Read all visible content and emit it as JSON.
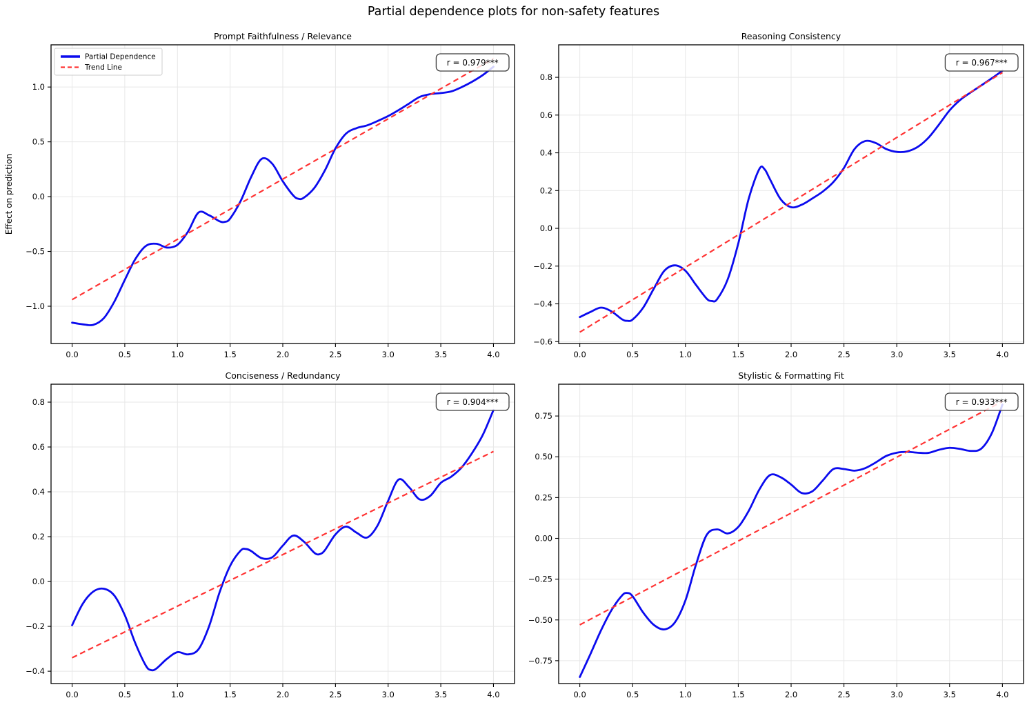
{
  "figure": {
    "title": "Partial dependence plots for non-safety features",
    "background": "#ffffff",
    "colors": {
      "curve": "#0b0bee",
      "trend": "#ff3333",
      "grid": "#e7e7e7",
      "spine": "#000000",
      "text": "#000000",
      "annotation_border": "#3a3a3a",
      "annotation_bg": "rgba(255,255,255,0.82)",
      "legend_border": "#cccccc",
      "legend_bg": "rgba(255,255,255,0.9)"
    },
    "legend": {
      "items": [
        {
          "label": "Partial Dependence",
          "style": "solid",
          "color": "#0b0bee"
        },
        {
          "label": "Trend Line",
          "style": "dashed",
          "color": "#ff3333"
        }
      ]
    }
  },
  "chart_data": [
    {
      "type": "line",
      "title": "Prompt Faithfulness / Relevance",
      "annotation": "r = 0.979***",
      "ylabel": "Effect on prediction",
      "has_legend": true,
      "xlim": [
        -0.2,
        4.2
      ],
      "ylim": [
        -1.34,
        1.385
      ],
      "x_ticks": [
        0.0,
        0.5,
        1.0,
        1.5,
        2.0,
        2.5,
        3.0,
        3.5,
        4.0
      ],
      "x_tick_labels": [
        "0.0",
        "0.5",
        "1.0",
        "1.5",
        "2.0",
        "2.5",
        "3.0",
        "3.5",
        "4.0"
      ],
      "y_ticks": [
        1.0,
        0.5,
        0.0,
        -0.5,
        -1.0
      ],
      "y_tick_labels": [
        "1.0",
        "0.5",
        "0.0",
        "−0.5",
        "−1.0"
      ],
      "series": [
        {
          "name": "Partial Dependence",
          "x": [
            0,
            0.1,
            0.2,
            0.3,
            0.4,
            0.5,
            0.6,
            0.7,
            0.8,
            0.9,
            1.0,
            1.1,
            1.2,
            1.3,
            1.4,
            1.45,
            1.5,
            1.6,
            1.7,
            1.8,
            1.9,
            2.0,
            2.1,
            2.15,
            2.2,
            2.3,
            2.4,
            2.5,
            2.6,
            2.7,
            2.8,
            2.9,
            3.0,
            3.1,
            3.2,
            3.3,
            3.4,
            3.5,
            3.6,
            3.7,
            3.8,
            3.9,
            4.0
          ],
          "y": [
            -1.15,
            -1.165,
            -1.17,
            -1.11,
            -0.96,
            -0.76,
            -0.57,
            -0.45,
            -0.43,
            -0.465,
            -0.44,
            -0.32,
            -0.145,
            -0.17,
            -0.225,
            -0.23,
            -0.2,
            -0.04,
            0.18,
            0.345,
            0.3,
            0.14,
            0.01,
            -0.02,
            -0.01,
            0.08,
            0.24,
            0.44,
            0.575,
            0.625,
            0.65,
            0.69,
            0.735,
            0.79,
            0.85,
            0.91,
            0.935,
            0.945,
            0.96,
            1.0,
            1.05,
            1.11,
            1.185
          ]
        },
        {
          "name": "Trend Line",
          "x": [
            0,
            4
          ],
          "y": [
            -0.94,
            1.26
          ]
        }
      ]
    },
    {
      "type": "line",
      "title": "Reasoning Consistency",
      "annotation": "r = 0.967***",
      "has_legend": false,
      "xlim": [
        -0.2,
        4.2
      ],
      "ylim": [
        -0.61,
        0.972
      ],
      "x_ticks": [
        0.0,
        0.5,
        1.0,
        1.5,
        2.0,
        2.5,
        3.0,
        3.5,
        4.0
      ],
      "x_tick_labels": [
        "0.0",
        "0.5",
        "1.0",
        "1.5",
        "2.0",
        "2.5",
        "3.0",
        "3.5",
        "4.0"
      ],
      "y_ticks": [
        0.8,
        0.6,
        0.4,
        0.2,
        0.0,
        -0.2,
        -0.4,
        -0.6
      ],
      "y_tick_labels": [
        "0.8",
        "0.6",
        "0.4",
        "0.2",
        "0.0",
        "−0.2",
        "−0.4",
        "−0.6"
      ],
      "series": [
        {
          "name": "Partial Dependence",
          "x": [
            0,
            0.1,
            0.2,
            0.3,
            0.4,
            0.45,
            0.5,
            0.6,
            0.7,
            0.8,
            0.9,
            1.0,
            1.1,
            1.2,
            1.25,
            1.3,
            1.4,
            1.5,
            1.6,
            1.7,
            1.75,
            1.8,
            1.9,
            2.0,
            2.1,
            2.2,
            2.3,
            2.4,
            2.5,
            2.6,
            2.7,
            2.8,
            2.9,
            3.0,
            3.1,
            3.2,
            3.3,
            3.4,
            3.5,
            3.6,
            3.7,
            3.8,
            3.9,
            4.0
          ],
          "y": [
            -0.47,
            -0.443,
            -0.42,
            -0.44,
            -0.482,
            -0.49,
            -0.483,
            -0.42,
            -0.32,
            -0.225,
            -0.196,
            -0.225,
            -0.3,
            -0.372,
            -0.385,
            -0.375,
            -0.27,
            -0.08,
            0.16,
            0.315,
            0.312,
            0.26,
            0.155,
            0.112,
            0.125,
            0.158,
            0.195,
            0.245,
            0.32,
            0.42,
            0.462,
            0.452,
            0.42,
            0.405,
            0.408,
            0.432,
            0.48,
            0.55,
            0.625,
            0.68,
            0.72,
            0.757,
            0.795,
            0.835
          ]
        },
        {
          "name": "Trend Line",
          "x": [
            0,
            4
          ],
          "y": [
            -0.55,
            0.825
          ]
        }
      ]
    },
    {
      "type": "line",
      "title": "Conciseness / Redundancy",
      "annotation": "r = 0.904***",
      "has_legend": false,
      "xlim": [
        -0.2,
        4.2
      ],
      "ylim": [
        -0.455,
        0.88
      ],
      "x_ticks": [
        0.0,
        0.5,
        1.0,
        1.5,
        2.0,
        2.5,
        3.0,
        3.5,
        4.0
      ],
      "x_tick_labels": [
        "0.0",
        "0.5",
        "1.0",
        "1.5",
        "2.0",
        "2.5",
        "3.0",
        "3.5",
        "4.0"
      ],
      "y_ticks": [
        0.8,
        0.6,
        0.4,
        0.2,
        0.0,
        -0.2,
        -0.4
      ],
      "y_tick_labels": [
        "0.8",
        "0.6",
        "0.4",
        "0.2",
        "0.0",
        "−0.2",
        "−0.4"
      ],
      "series": [
        {
          "name": "Partial Dependence",
          "x": [
            0,
            0.1,
            0.2,
            0.3,
            0.4,
            0.5,
            0.6,
            0.7,
            0.75,
            0.8,
            0.9,
            1.0,
            1.1,
            1.2,
            1.3,
            1.4,
            1.5,
            1.6,
            1.65,
            1.7,
            1.8,
            1.9,
            2.0,
            2.1,
            2.2,
            2.3,
            2.35,
            2.4,
            2.5,
            2.6,
            2.7,
            2.8,
            2.9,
            3.0,
            3.1,
            3.2,
            3.3,
            3.4,
            3.5,
            3.6,
            3.7,
            3.8,
            3.9,
            4.0
          ],
          "y": [
            -0.195,
            -0.1,
            -0.045,
            -0.032,
            -0.062,
            -0.15,
            -0.275,
            -0.375,
            -0.395,
            -0.388,
            -0.345,
            -0.315,
            -0.325,
            -0.302,
            -0.2,
            -0.048,
            0.07,
            0.138,
            0.145,
            0.136,
            0.104,
            0.108,
            0.16,
            0.205,
            0.178,
            0.128,
            0.122,
            0.14,
            0.21,
            0.245,
            0.218,
            0.196,
            0.25,
            0.36,
            0.455,
            0.42,
            0.366,
            0.382,
            0.44,
            0.468,
            0.51,
            0.575,
            0.655,
            0.765
          ]
        },
        {
          "name": "Trend Line",
          "x": [
            0,
            4
          ],
          "y": [
            -0.34,
            0.58
          ]
        }
      ]
    },
    {
      "type": "line",
      "title": "Stylistic & Formatting Fit",
      "annotation": "r = 0.933***",
      "has_legend": false,
      "xlim": [
        -0.2,
        4.2
      ],
      "ylim": [
        -0.89,
        0.945
      ],
      "x_ticks": [
        0.0,
        0.5,
        1.0,
        1.5,
        2.0,
        2.5,
        3.0,
        3.5,
        4.0
      ],
      "x_tick_labels": [
        "0.0",
        "0.5",
        "1.0",
        "1.5",
        "2.0",
        "2.5",
        "3.0",
        "3.5",
        "4.0"
      ],
      "y_ticks": [
        0.75,
        0.5,
        0.25,
        0.0,
        -0.25,
        -0.5,
        -0.75
      ],
      "y_tick_labels": [
        "0.75",
        "0.50",
        "0.25",
        "0.00",
        "−0.25",
        "−0.50",
        "−0.75"
      ],
      "series": [
        {
          "name": "Partial Dependence",
          "x": [
            0,
            0.1,
            0.2,
            0.3,
            0.4,
            0.45,
            0.5,
            0.6,
            0.7,
            0.8,
            0.9,
            1.0,
            1.1,
            1.2,
            1.3,
            1.4,
            1.5,
            1.6,
            1.7,
            1.8,
            1.9,
            2.0,
            2.1,
            2.2,
            2.3,
            2.4,
            2.5,
            2.6,
            2.7,
            2.8,
            2.9,
            3.0,
            3.1,
            3.2,
            3.3,
            3.4,
            3.5,
            3.6,
            3.7,
            3.8,
            3.9,
            4.0
          ],
          "y": [
            -0.85,
            -0.71,
            -0.565,
            -0.44,
            -0.35,
            -0.335,
            -0.355,
            -0.455,
            -0.53,
            -0.558,
            -0.515,
            -0.38,
            -0.16,
            0.02,
            0.055,
            0.03,
            0.07,
            0.17,
            0.3,
            0.388,
            0.375,
            0.33,
            0.278,
            0.288,
            0.355,
            0.425,
            0.425,
            0.415,
            0.43,
            0.465,
            0.505,
            0.525,
            0.53,
            0.525,
            0.524,
            0.543,
            0.555,
            0.548,
            0.536,
            0.55,
            0.645,
            0.82
          ]
        },
        {
          "name": "Trend Line",
          "x": [
            0,
            4
          ],
          "y": [
            -0.53,
            0.84
          ]
        }
      ]
    }
  ]
}
